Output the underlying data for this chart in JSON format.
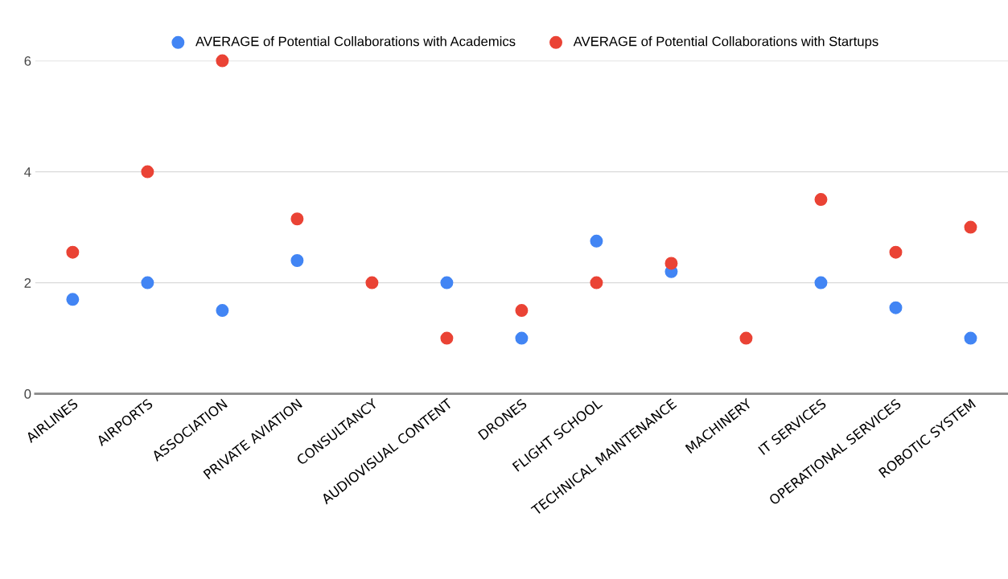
{
  "chart_data": {
    "type": "scatter",
    "categories": [
      "AIRLINES",
      "AIRPORTS",
      "ASSOCIATION",
      "PRIVATE AVIATION",
      "CONSULTANCY",
      "AUDIOVISUAL CONTENT",
      "DRONES",
      "FLIGHT SCHOOL",
      "TECHNICAL MAINTENANCE",
      "MACHINERY",
      "IT SERVICES",
      "OPERATIONAL SERVICES",
      "ROBOTIC SYSTEM"
    ],
    "series": [
      {
        "name": "AVERAGE of Potential Collaborations with Academics",
        "color": "#4285f4",
        "values": [
          1.7,
          2,
          1.5,
          2.4,
          null,
          2,
          1,
          2.75,
          2.2,
          null,
          2,
          1.55,
          1
        ]
      },
      {
        "name": "AVERAGE of Potential Collaborations with Startups",
        "color": "#ea4335",
        "values": [
          2.55,
          4,
          6,
          3.15,
          2,
          1,
          1.5,
          2,
          2.35,
          1,
          3.5,
          2.55,
          3
        ]
      }
    ],
    "ylim": [
      0,
      6
    ],
    "yticks": [
      0,
      2,
      4,
      6
    ],
    "grid": "y",
    "legend": "top",
    "marker": "circle"
  }
}
